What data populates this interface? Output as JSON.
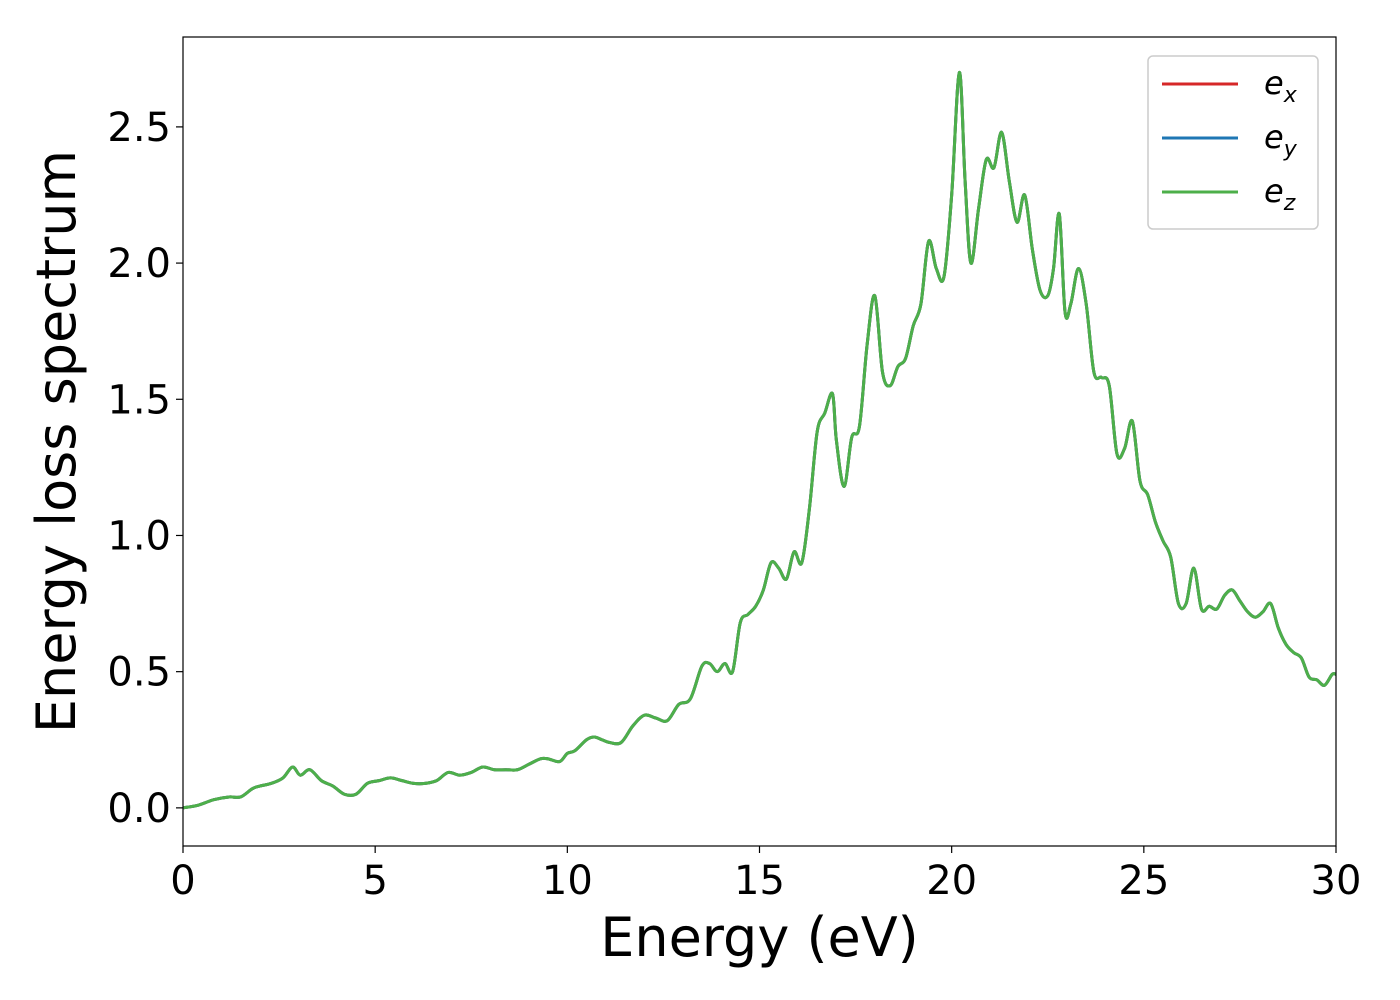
{
  "chart_data": {
    "type": "line",
    "xlabel": "Energy (eV)",
    "ylabel": "Energy loss spectrum",
    "xlim": [
      0,
      30
    ],
    "ylim": [
      -0.14,
      2.83
    ],
    "x_ticks": [
      "0",
      "5",
      "10",
      "15",
      "20",
      "25",
      "30"
    ],
    "y_ticks": [
      "0.0",
      "0.5",
      "1.0",
      "1.5",
      "2.0",
      "2.5"
    ],
    "grid": false,
    "legend_position": "top-right",
    "series": [
      {
        "name_base": "e",
        "name_sub": "x",
        "color": "#d62728",
        "x": [
          0,
          0.4,
          0.8,
          1.2,
          1.5,
          1.8,
          2.0,
          2.3,
          2.6,
          2.85,
          3.05,
          3.3,
          3.6,
          3.9,
          4.2,
          4.5,
          4.8,
          5.1,
          5.4,
          5.7,
          6.0,
          6.3,
          6.6,
          6.9,
          7.2,
          7.5,
          7.8,
          8.1,
          8.4,
          8.7,
          9.0,
          9.3,
          9.5,
          9.8,
          10.0,
          10.2,
          10.5,
          10.7,
          10.9,
          11.1,
          11.4,
          11.7,
          12.0,
          12.3,
          12.6,
          12.9,
          13.2,
          13.5,
          13.7,
          13.9,
          14.1,
          14.3,
          14.5,
          14.7,
          14.9,
          15.1,
          15.3,
          15.5,
          15.7,
          15.9,
          16.1,
          16.3,
          16.5,
          16.7,
          16.9,
          17.0,
          17.2,
          17.4,
          17.6,
          17.8,
          18.0,
          18.2,
          18.4,
          18.6,
          18.8,
          19.0,
          19.2,
          19.4,
          19.6,
          19.8,
          20.0,
          20.2,
          20.35,
          20.5,
          20.7,
          20.9,
          21.1,
          21.3,
          21.5,
          21.7,
          21.9,
          22.1,
          22.3,
          22.5,
          22.65,
          22.8,
          22.95,
          23.1,
          23.3,
          23.5,
          23.7,
          23.9,
          24.1,
          24.3,
          24.5,
          24.7,
          24.9,
          25.1,
          25.3,
          25.5,
          25.7,
          25.9,
          26.1,
          26.3,
          26.5,
          26.7,
          26.9,
          27.1,
          27.3,
          27.5,
          27.7,
          27.9,
          28.1,
          28.3,
          28.5,
          28.7,
          28.9,
          29.1,
          29.3,
          29.5,
          29.7,
          29.9,
          30
        ],
        "y": [
          0,
          0.01,
          0.03,
          0.04,
          0.04,
          0.07,
          0.08,
          0.09,
          0.11,
          0.15,
          0.12,
          0.14,
          0.1,
          0.08,
          0.05,
          0.05,
          0.09,
          0.1,
          0.11,
          0.1,
          0.09,
          0.09,
          0.1,
          0.13,
          0.12,
          0.13,
          0.15,
          0.14,
          0.14,
          0.14,
          0.16,
          0.18,
          0.18,
          0.17,
          0.2,
          0.21,
          0.25,
          0.26,
          0.25,
          0.24,
          0.24,
          0.3,
          0.34,
          0.33,
          0.32,
          0.38,
          0.4,
          0.52,
          0.53,
          0.5,
          0.53,
          0.5,
          0.68,
          0.71,
          0.74,
          0.8,
          0.9,
          0.88,
          0.84,
          0.94,
          0.9,
          1.1,
          1.38,
          1.45,
          1.52,
          1.35,
          1.18,
          1.36,
          1.4,
          1.7,
          1.88,
          1.6,
          1.55,
          1.62,
          1.65,
          1.77,
          1.85,
          2.08,
          1.98,
          1.95,
          2.25,
          2.7,
          2.3,
          2.0,
          2.2,
          2.38,
          2.35,
          2.48,
          2.3,
          2.15,
          2.25,
          2.05,
          1.9,
          1.88,
          1.98,
          2.18,
          1.82,
          1.85,
          1.98,
          1.85,
          1.6,
          1.58,
          1.55,
          1.3,
          1.32,
          1.42,
          1.2,
          1.15,
          1.05,
          0.98,
          0.92,
          0.75,
          0.75,
          0.88,
          0.73,
          0.74,
          0.73,
          0.78,
          0.8,
          0.76,
          0.72,
          0.7,
          0.72,
          0.75,
          0.66,
          0.6,
          0.57,
          0.55,
          0.48,
          0.47,
          0.45,
          0.49,
          0.49
        ]
      },
      {
        "name_base": "e",
        "name_sub": "y",
        "color": "#1f77b4"
      },
      {
        "name_base": "e",
        "name_sub": "z",
        "color": "#4daf4a"
      }
    ]
  }
}
